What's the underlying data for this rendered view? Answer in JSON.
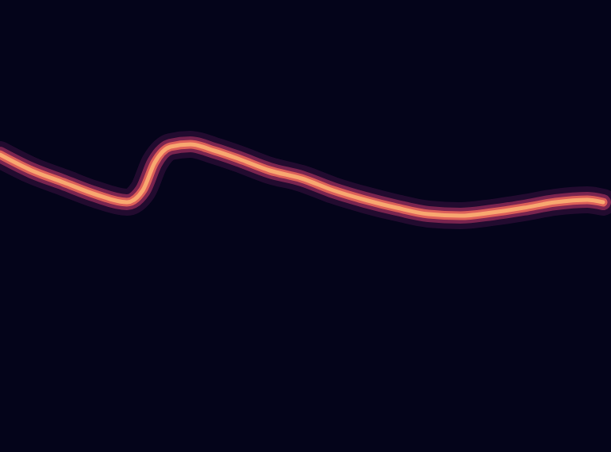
{
  "chart_data": {
    "type": "line",
    "x": [
      0,
      40,
      80,
      120,
      160,
      180,
      195,
      215,
      240,
      270,
      300,
      340,
      380,
      420,
      460,
      500,
      540,
      580,
      620,
      660,
      700,
      740,
      760
    ],
    "series": [
      {
        "color": "#f8a870",
        "values": [
          375,
          355,
          340,
          325,
          315,
          330,
          365,
          385,
          388,
          380,
          370,
          355,
          345,
          330,
          318,
          308,
          300,
          298,
          302,
          308,
          315,
          318,
          315
        ]
      }
    ],
    "xlim": [
      0,
      770
    ],
    "ylim": [
      0,
      570
    ],
    "tick_labels": false,
    "grid": false
  }
}
